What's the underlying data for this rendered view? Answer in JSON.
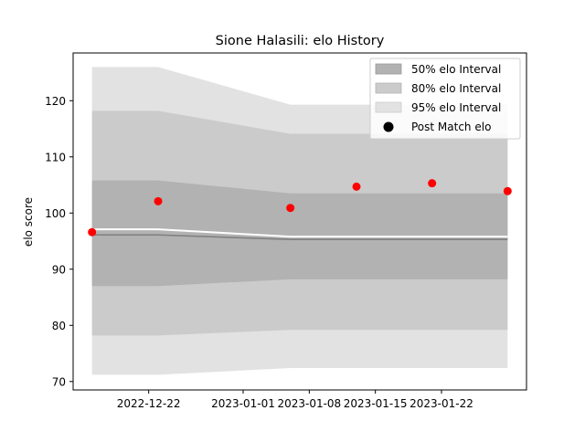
{
  "chart_data": {
    "type": "line",
    "title": "Sione Halasili: elo History",
    "xlabel": "",
    "ylabel": "elo score",
    "x_ticks": [
      "2022-12-22",
      "2023-01-01",
      "2023-01-08",
      "2023-01-15",
      "2023-01-22"
    ],
    "y_ticks": [
      70,
      80,
      90,
      100,
      110,
      120
    ],
    "xlim": [
      "2022-12-14",
      "2023-01-31"
    ],
    "ylim": [
      68.5,
      128.5
    ],
    "grid": false,
    "legend_position": "top-right",
    "legend": {
      "band50": "50% elo Interval",
      "band80": "80% elo Interval",
      "band95": "95% elo Interval",
      "points": "Post Match elo"
    },
    "colors": {
      "band50": "#b2b2b2",
      "band80": "#cbcbcb",
      "band95": "#e2e2e2",
      "median": "#808080",
      "mean": "#ffffff",
      "points": "#ff0000"
    },
    "bands": {
      "x": [
        "2022-12-16",
        "2022-12-23",
        "2023-01-06",
        "2023-01-29"
      ],
      "p95_low": [
        71.2,
        71.2,
        72.4,
        72.4
      ],
      "p80_low": [
        78.2,
        78.2,
        79.2,
        79.2
      ],
      "p50_low": [
        87.0,
        87.0,
        88.2,
        88.2
      ],
      "p50_high": [
        105.8,
        105.8,
        103.5,
        103.5
      ],
      "p80_high": [
        118.2,
        118.2,
        114.1,
        114.1
      ],
      "p95_high": [
        126.0,
        126.0,
        119.3,
        119.3
      ]
    },
    "lines": {
      "x": [
        "2022-12-16",
        "2022-12-23",
        "2023-01-06",
        "2023-01-29"
      ],
      "median": [
        96.1,
        96.1,
        95.3,
        95.3
      ],
      "mean": [
        97.1,
        97.1,
        95.8,
        95.8
      ]
    },
    "points": {
      "x": [
        "2022-12-16",
        "2022-12-23",
        "2023-01-06",
        "2023-01-13",
        "2023-01-21",
        "2023-01-29"
      ],
      "y": [
        96.6,
        102.1,
        100.9,
        104.7,
        105.3,
        103.9
      ]
    }
  }
}
